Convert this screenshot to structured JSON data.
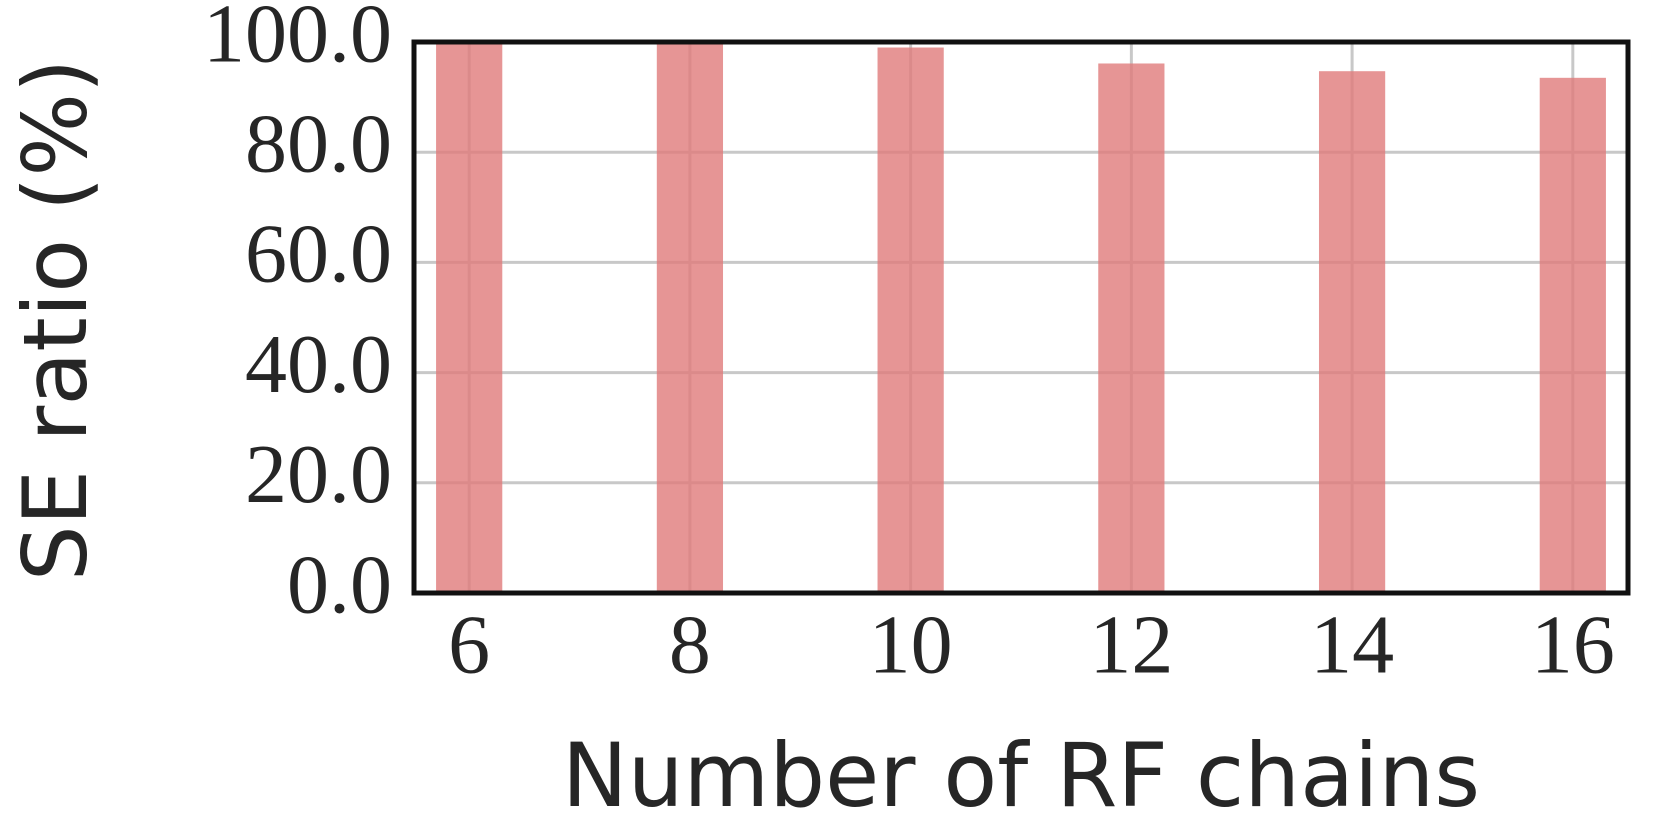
{
  "chart_data": {
    "type": "bar",
    "x": [
      6,
      8,
      10,
      12,
      14,
      16
    ],
    "values": [
      100.0,
      100.0,
      99.0,
      96.1,
      94.7,
      93.5
    ],
    "color": "#e07b7b",
    "xlabel": "Number of RF chains",
    "ylabel": "SE ratio (%)",
    "xlim": [
      5.5,
      16.5
    ],
    "xticks": [
      6,
      8,
      10,
      12,
      14,
      16
    ],
    "ylim": [
      0,
      100
    ],
    "yticks": [
      {
        "value": 0,
        "label": "0.0"
      },
      {
        "value": 20,
        "label": "20.0"
      },
      {
        "value": 40,
        "label": "40.0"
      },
      {
        "value": 60,
        "label": "60.0"
      },
      {
        "value": 80,
        "label": "80.0"
      },
      {
        "value": 100,
        "label": "100.0"
      }
    ],
    "grid": true
  }
}
